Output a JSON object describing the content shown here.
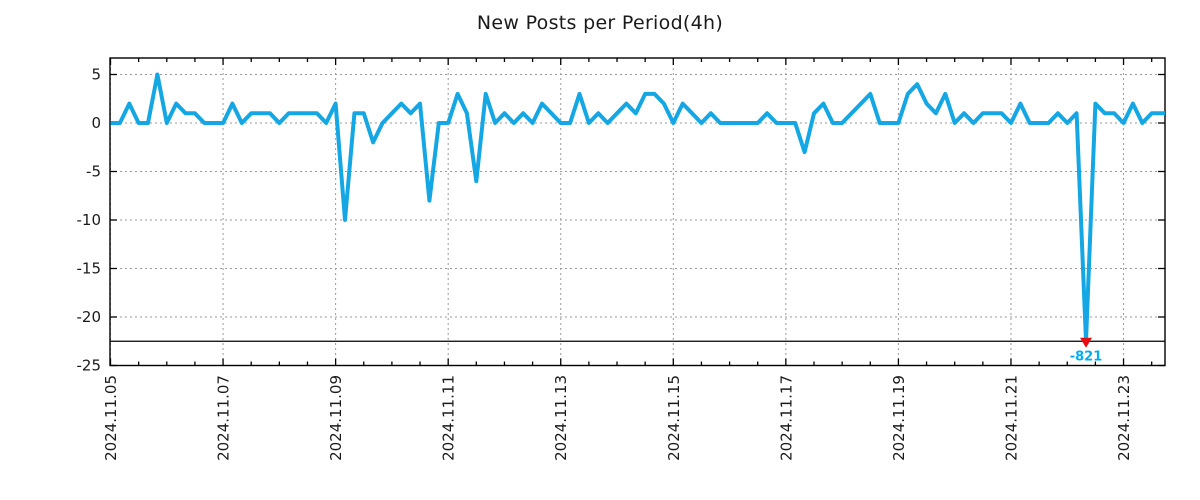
{
  "chart_data": {
    "type": "line",
    "title": "New Posts per Period(4h)",
    "x_start": "2024.11.05 00:00",
    "x_step_hours": 4,
    "values": [
      0,
      0,
      2,
      0,
      0,
      5,
      0,
      2,
      1,
      1,
      0,
      0,
      0,
      2,
      0,
      1,
      1,
      1,
      0,
      1,
      1,
      1,
      1,
      0,
      2,
      -10,
      1,
      1,
      -2,
      0,
      1,
      2,
      1,
      2,
      -8,
      0,
      0,
      3,
      1,
      -6,
      3,
      0,
      1,
      0,
      1,
      0,
      2,
      1,
      0,
      0,
      3,
      0,
      1,
      0,
      1,
      2,
      1,
      3,
      3,
      2,
      0,
      2,
      1,
      0,
      1,
      0,
      0,
      0,
      0,
      0,
      1,
      0,
      0,
      0,
      -3,
      1,
      2,
      0,
      0,
      1,
      2,
      3,
      0,
      0,
      0,
      3,
      4,
      2,
      1,
      3,
      0,
      1,
      0,
      1,
      1,
      1,
      0,
      2,
      0,
      0,
      0,
      1,
      0,
      1,
      -821,
      2,
      1,
      1,
      0,
      2,
      0,
      1,
      1
    ],
    "x_tick_labels": [
      "2024.11.05",
      "2024.11.07",
      "2024.11.09",
      "2024.11.11",
      "2024.11.13",
      "2024.11.15",
      "2024.11.17",
      "2024.11.19",
      "2024.11.21",
      "2024.11.23"
    ],
    "x_tick_every_days": 2,
    "x_minor_tick_hours": 12,
    "y_tick_labels": [
      "5",
      "0",
      "-5",
      "-10",
      "-15",
      "-20",
      "-25"
    ],
    "y_ticks": [
      5,
      0,
      -5,
      -10,
      -15,
      -20,
      -25
    ],
    "ylim": [
      -25,
      6.7
    ],
    "grid": "dotted",
    "legend": "none",
    "series_color": "#14a7e4",
    "grid_color": "#9a9a9a",
    "axis_color": "#000000",
    "annotation": {
      "text": "-821",
      "text_color": "#00aeef",
      "marker": "caret-down",
      "marker_color": "#e60e0e",
      "point_index": 104,
      "clip_value": -22.5
    },
    "reference_line": {
      "y": -22.5,
      "color": "#000000"
    }
  }
}
